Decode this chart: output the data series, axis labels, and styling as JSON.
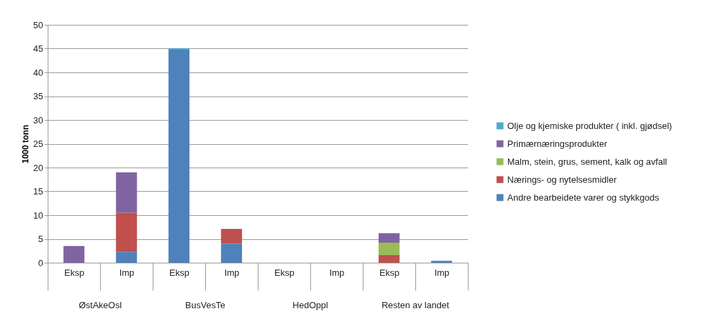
{
  "chart_data": {
    "type": "bar",
    "stacked": true,
    "ylabel": "1000 tonn",
    "categories": [
      "Eksp",
      "Imp",
      "Eksp",
      "Imp",
      "Eksp",
      "Imp",
      "Eksp",
      "Imp"
    ],
    "annotations": [
      "ØstAkeOsl",
      "BusVesTe",
      "HedOppl",
      "Resten av landet"
    ],
    "series": [
      {
        "name": "Andre bearbeidete varer og stykkgods",
        "color": "#4f81bd",
        "values": [
          0,
          2.3,
          44.9,
          4.0,
          0,
          0,
          0,
          0.4
        ]
      },
      {
        "name": "Nærings- og nytelsesmidler",
        "color": "#c0504d",
        "values": [
          0,
          8.2,
          0,
          3.1,
          0,
          0,
          1.6,
          0
        ]
      },
      {
        "name": "Malm, stein, grus, sement, kalk og avfall",
        "color": "#9bbb59",
        "values": [
          0,
          0,
          0,
          0,
          0,
          0,
          2.6,
          0
        ]
      },
      {
        "name": "Primærnæringsprodukter",
        "color": "#8064a2",
        "values": [
          3.5,
          8.5,
          0,
          0,
          0,
          0,
          2.0,
          0
        ]
      },
      {
        "name": "Olje og kjemiske produkter ( inkl. gjødsel)",
        "color": "#4bacc6",
        "values": [
          0,
          0,
          0.2,
          0,
          0,
          0,
          0,
          0
        ]
      }
    ],
    "ylim": [
      0,
      50
    ],
    "yticks": [
      0,
      5,
      10,
      15,
      20,
      25,
      30,
      35,
      40,
      45,
      50
    ],
    "grid": "y",
    "legend": "right"
  }
}
